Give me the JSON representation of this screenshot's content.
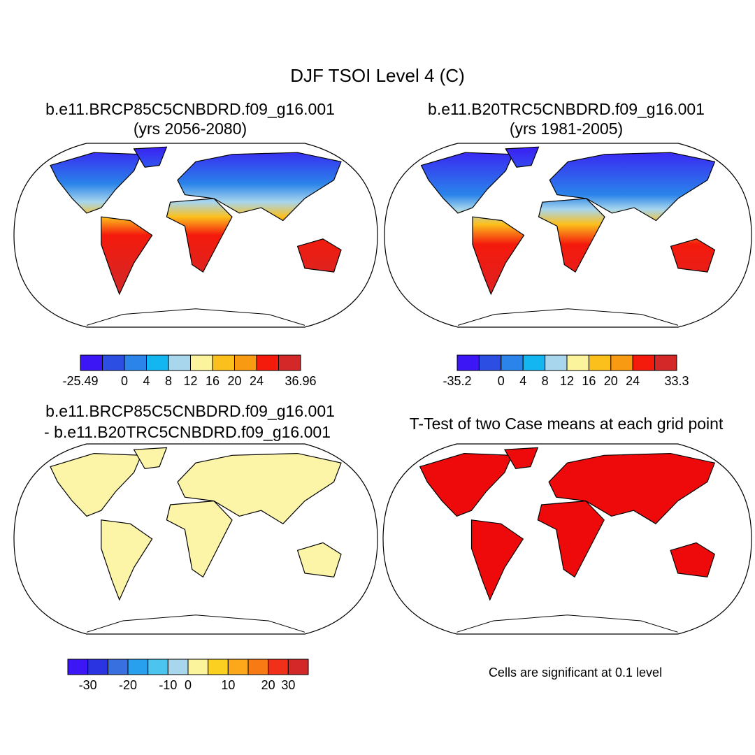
{
  "title": "DJF TSOI Level 4 (C)",
  "panels": [
    {
      "title": "b.e11.BRCP85C5CNBDRD.f09_g16.001",
      "subtitle": "(yrs 2056-2080)",
      "colorbar": {
        "colors": [
          "#3c16f4",
          "#2c4ee2",
          "#2a84ea",
          "#14b6f2",
          "#a8d6ec",
          "#fcf49c",
          "#fcc01c",
          "#f89a12",
          "#f41a0c",
          "#d42828"
        ],
        "labels": [
          -25.49,
          0,
          4,
          8,
          12,
          16,
          20,
          24,
          36.96
        ]
      }
    },
    {
      "title": "b.e11.B20TRC5CNBDRD.f09_g16.001",
      "subtitle": "(yrs 1981-2005)",
      "colorbar": {
        "colors": [
          "#3c16f4",
          "#2c4ee2",
          "#2a84ea",
          "#14b6f2",
          "#a8d6ec",
          "#fcf49c",
          "#fcc01c",
          "#f89a12",
          "#f41a0c",
          "#d42828"
        ],
        "labels": [
          -35.2,
          0,
          4,
          8,
          12,
          16,
          20,
          24,
          33.3
        ]
      }
    },
    {
      "title": "b.e11.BRCP85C5CNBDRD.f09_g16.001",
      "subtitle": "- b.e11.B20TRC5CNBDRD.f09_g16.001",
      "colorbar": {
        "colors": [
          "#3c16f4",
          "#2a34e0",
          "#3870e0",
          "#28a0ee",
          "#4cc4f0",
          "#a8d6ec",
          "#fcf49c",
          "#fcd020",
          "#fca81a",
          "#f87a14",
          "#f03018",
          "#d42828"
        ],
        "labels": [
          -30,
          -20,
          -10,
          0,
          10,
          20,
          30
        ]
      }
    },
    {
      "title": "T-Test of two Case means at each grid point",
      "note": "Cells are significant at 0.1 level"
    }
  ]
}
